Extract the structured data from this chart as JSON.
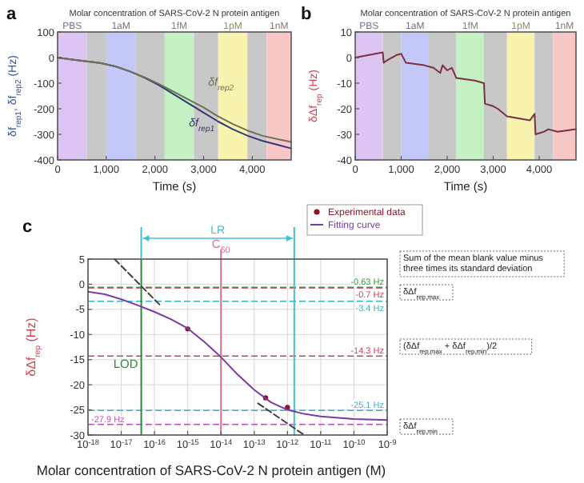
{
  "chart_data": [
    {
      "type": "line",
      "title": "Molar concentration of SARS-CoV-2 N protein antigen",
      "xlabel": "Time (s)",
      "ylabel": "δf$_{rep1}$, δf$_{rep2}$ (Hz)",
      "x": [
        0,
        300,
        600,
        900,
        1200,
        1500,
        1800,
        2100,
        2400,
        2700,
        3000,
        3300,
        3600,
        3900,
        4200,
        4500,
        4800
      ],
      "series": [
        {
          "name": "δf$_{rep1}$",
          "color": "#303a70",
          "values": [
            0,
            -8,
            -15,
            -22,
            -35,
            -55,
            -80,
            -110,
            -145,
            -180,
            -215,
            -250,
            -280,
            -305,
            -325,
            -340,
            -355
          ]
        },
        {
          "name": "δf$_{rep2}$",
          "color": "#6f7058",
          "values": [
            0,
            -8,
            -15,
            -22,
            -35,
            -55,
            -78,
            -105,
            -135,
            -165,
            -195,
            -230,
            -260,
            -285,
            -305,
            -318,
            -330
          ]
        }
      ],
      "xlim": [
        0,
        4800
      ],
      "xticks": [
        0,
        {
          "value": 1000,
          "label": "1,000"
        },
        {
          "value": 2000,
          "label": "2,000"
        },
        {
          "value": 3000,
          "label": "3,000"
        },
        {
          "value": 4000,
          "label": "4,000"
        }
      ],
      "ylim": [
        -400,
        100
      ],
      "yticks": [
        -400,
        -300,
        -200,
        -100,
        0,
        100
      ],
      "bands": [
        {
          "axis": "x",
          "from": 0,
          "to": 600,
          "label": "PBS",
          "color": "#dcc4f4"
        },
        {
          "axis": "x",
          "from": 600,
          "to": 1000,
          "color": "#c8c8c8"
        },
        {
          "axis": "x",
          "from": 1000,
          "to": 1600,
          "label": "1aM",
          "color": "#c4c8f8"
        },
        {
          "axis": "x",
          "from": 1600,
          "to": 2200,
          "color": "#c8c8c8"
        },
        {
          "axis": "x",
          "from": 2200,
          "to": 2800,
          "label": "1fM",
          "color": "#c4f0c4"
        },
        {
          "axis": "x",
          "from": 2800,
          "to": 3300,
          "color": "#c8c8c8"
        },
        {
          "axis": "x",
          "from": 3300,
          "to": 3900,
          "label": "1pM",
          "color": "#f8f4b0"
        },
        {
          "axis": "x",
          "from": 3900,
          "to": 4300,
          "color": "#c8c8c8"
        },
        {
          "axis": "x",
          "from": 4300,
          "to": 4800,
          "label": "1nM",
          "color": "#f8c8c8"
        }
      ],
      "annotations": [
        "a"
      ]
    },
    {
      "type": "line",
      "title": "Molar concentration of SARS-CoV-2 N protein antigen",
      "xlabel": "Time (s)",
      "ylabel": "δΔf$_{rep}$ (Hz)",
      "x": [
        0,
        300,
        600,
        620,
        700,
        900,
        1000,
        1100,
        1500,
        1700,
        1850,
        1900,
        2000,
        2100,
        2200,
        2600,
        2800,
        2820,
        3000,
        3100,
        3300,
        3800,
        3900,
        3920,
        4100,
        4200,
        4400,
        4800
      ],
      "series": [
        {
          "color": "#7a3040",
          "values": [
            0,
            1,
            2,
            -2,
            -1,
            1,
            1.5,
            -2,
            -3,
            -4,
            -6,
            -3,
            -5,
            -4,
            -8,
            -9,
            -10,
            -18,
            -19,
            -20,
            -23,
            -24.5,
            -22,
            -30,
            -29,
            -28,
            -29,
            -28
          ]
        }
      ],
      "xlim": [
        0,
        4800
      ],
      "xticks": [
        0,
        {
          "value": 1000,
          "label": "1,000"
        },
        {
          "value": 2000,
          "label": "2,000"
        },
        {
          "value": 3000,
          "label": "3,000"
        },
        {
          "value": 4000,
          "label": "4,000"
        }
      ],
      "ylim": [
        -40,
        10
      ],
      "yticks": [
        -40,
        -30,
        -20,
        -10,
        0,
        10
      ],
      "bands": [
        {
          "axis": "x",
          "from": 0,
          "to": 600,
          "label": "PBS",
          "color": "#dcc4f4"
        },
        {
          "axis": "x",
          "from": 600,
          "to": 1000,
          "color": "#c8c8c8"
        },
        {
          "axis": "x",
          "from": 1000,
          "to": 1600,
          "label": "1aM",
          "color": "#c4c8f8"
        },
        {
          "axis": "x",
          "from": 1600,
          "to": 2200,
          "color": "#c8c8c8"
        },
        {
          "axis": "x",
          "from": 2200,
          "to": 2800,
          "label": "1fM",
          "color": "#c4f0c4"
        },
        {
          "axis": "x",
          "from": 2800,
          "to": 3300,
          "color": "#c8c8c8"
        },
        {
          "axis": "x",
          "from": 3300,
          "to": 3900,
          "label": "1pM",
          "color": "#f8f4b0"
        },
        {
          "axis": "x",
          "from": 3900,
          "to": 4300,
          "color": "#c8c8c8"
        },
        {
          "axis": "x",
          "from": 4300,
          "to": 4800,
          "label": "1nM",
          "color": "#f8c8c8"
        }
      ],
      "annotations": [
        "b"
      ]
    },
    {
      "type": "line",
      "xlabel": "Molar concentration of SARS-CoV-2 N protein antigen (M)",
      "ylabel": "δΔf$_{rep}$ (Hz)",
      "log": "x",
      "grid": true,
      "legend": "top right",
      "series": [
        {
          "name": "Experimental data",
          "type": "scatter",
          "marker": "circle",
          "color": "#8a1828",
          "x": [
            1e-15,
            2.2e-13,
            1e-12
          ],
          "values": [
            -8.9,
            -22.6,
            -24.5
          ]
        },
        {
          "name": "Fitting curve",
          "color": "#7a3aa8",
          "x": [
            1e-18,
            3.2e-18,
            1e-17,
            3.2e-17,
            1e-16,
            3.2e-16,
            1e-15,
            3.2e-15,
            1e-14,
            3.2e-14,
            1e-13,
            3.2e-13,
            1e-12,
            3.2e-12,
            1e-11,
            1e-10,
            1e-09
          ],
          "values": [
            -1.5,
            -2,
            -3,
            -4.2,
            -5.5,
            -7,
            -8.8,
            -11.5,
            -14.5,
            -18,
            -21,
            -23.5,
            -25,
            -25.8,
            -26.3,
            -26.8,
            -27
          ]
        },
        {
          "color": "#404040",
          "line_style": "dashed",
          "x": [
            6.3e-18,
            1.6e-16
          ],
          "values": [
            5,
            -4.4
          ]
        },
        {
          "color": "#404040",
          "line_style": "dashed",
          "x": [
            1.3e-13,
            3.2e-12
          ],
          "values": [
            -23.7,
            -30
          ]
        }
      ],
      "xlim": [
        1e-18,
        1e-09
      ],
      "xticks": [
        {
          "value": 1e-18,
          "label": "10$^{-18}$"
        },
        {
          "value": 1e-17,
          "label": "10$^{-17}$"
        },
        {
          "value": 1e-16,
          "label": "10$^{-16}$"
        },
        {
          "value": 1e-15,
          "label": "10$^{-15}$"
        },
        {
          "value": 1e-14,
          "label": "10$^{-14}$"
        },
        {
          "value": 1e-13,
          "label": "10$^{-13}$"
        },
        {
          "value": 1e-12,
          "label": "10$^{-12}$"
        },
        {
          "value": 1e-11,
          "label": "10$^{-11}$"
        },
        {
          "value": 1e-10,
          "label": "10$^{-10}$"
        },
        {
          "value": 1e-09,
          "label": "10$^{-9}$"
        }
      ],
      "ylim": [
        -30,
        5
      ],
      "yticks": [
        -30,
        -25,
        -20,
        -15,
        -10,
        -5,
        0,
        5
      ],
      "ref_lines": [
        {
          "axis": "y",
          "value": -0.63,
          "label": "-0.63 Hz",
          "color": "#3a9a3a",
          "line_style": "dashed"
        },
        {
          "axis": "y",
          "value": -0.7,
          "label": "-0.7 Hz",
          "color": "#d04060",
          "line_style": "dashed"
        },
        {
          "axis": "y",
          "value": -3.4,
          "label": "-3.4 Hz",
          "color": "#30b8c8",
          "line_style": "dashed"
        },
        {
          "axis": "y",
          "value": -14.3,
          "label": "-14.3 Hz",
          "color": "#d04060",
          "line_style": "dashed"
        },
        {
          "axis": "y",
          "value": -25.1,
          "label": "-25.1 Hz",
          "color": "#30b8c8",
          "line_style": "dashed"
        },
        {
          "axis": "y",
          "value": -27.9,
          "label": "-27.9 Hz",
          "color": "#c050c0",
          "line_style": "dashed"
        },
        {
          "axis": "x",
          "value": 4e-17,
          "label": "LOD",
          "color": "#2a8a3a"
        },
        {
          "axis": "x",
          "value": 1e-14,
          "label": "C$_{50}$",
          "color": "#e07090"
        },
        {
          "axis": "x",
          "value": 1.6e-12,
          "color": "#40c0d0"
        }
      ],
      "annotations": [
        "c",
        "LR",
        "Sum of the mean blank value minus three times its standard deviation",
        "δΔf$_{rep,max}$",
        "(δΔf$_{rep,max}$ + δΔf$_{rep,min}$)/2",
        "δΔf$_{rep,min}$"
      ]
    }
  ]
}
